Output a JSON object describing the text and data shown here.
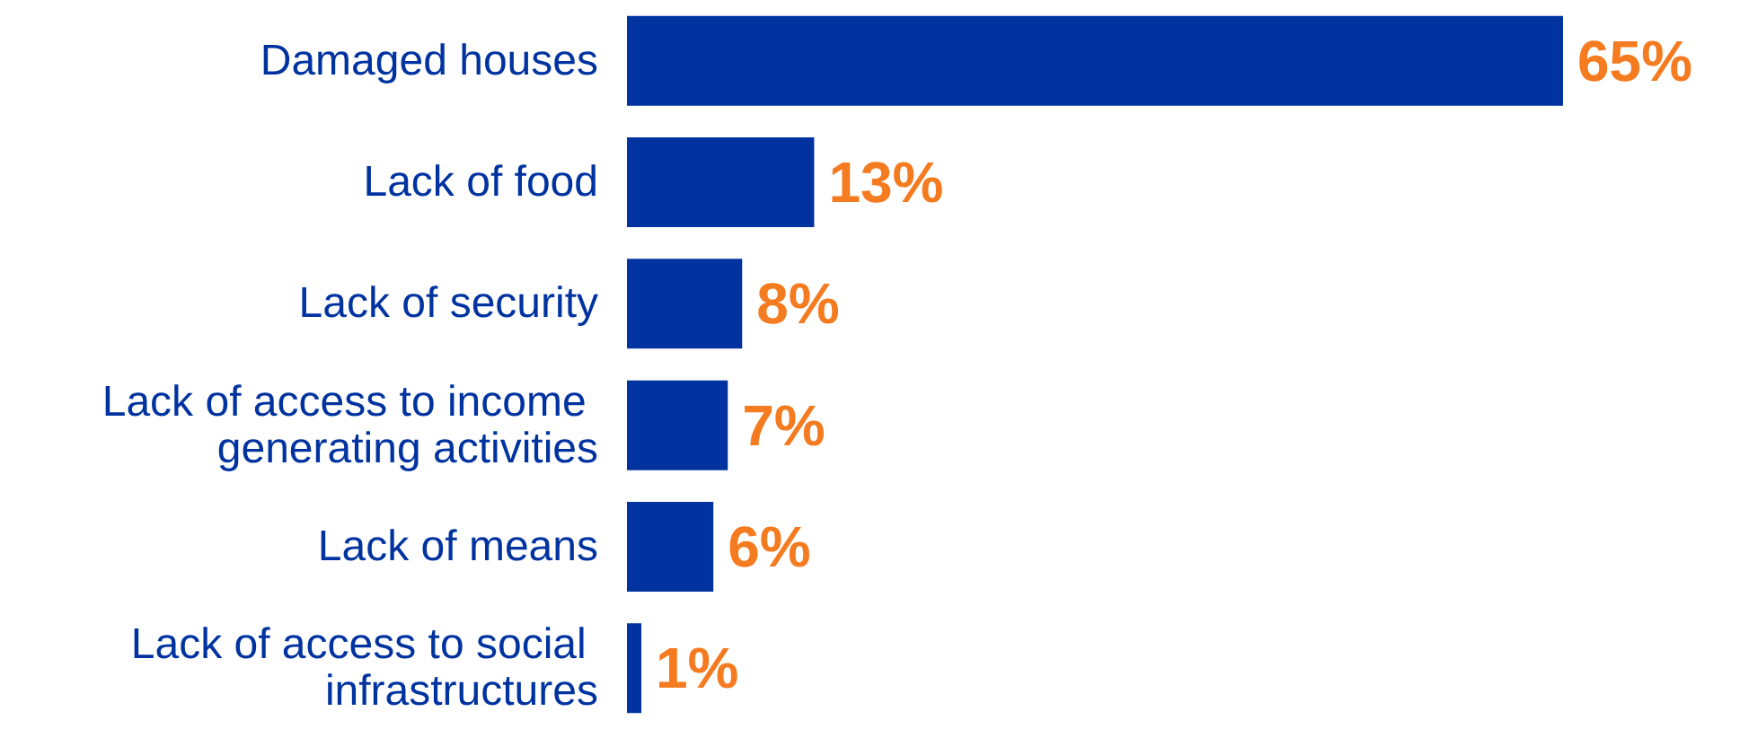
{
  "chart_data": {
    "type": "bar",
    "orientation": "horizontal",
    "categories": [
      "Damaged houses",
      "Lack of food",
      "Lack of security",
      "Lack of access to income generating activities",
      "Lack of means",
      "Lack of access to social infrastructures"
    ],
    "values": [
      65,
      13,
      8,
      7,
      6,
      1
    ],
    "value_labels": [
      "65%",
      "13%",
      "8%",
      "7%",
      "6%",
      "1%"
    ],
    "color": "#0033a0",
    "grid": false
  }
}
